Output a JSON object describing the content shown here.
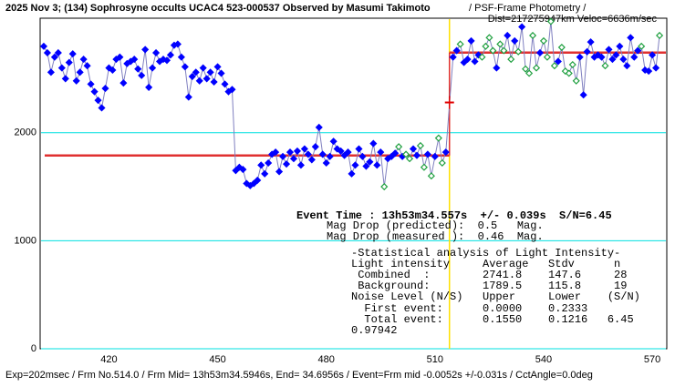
{
  "chart_data": {
    "type": "scatter",
    "title": "2025 Nov 3; (134) Sophrosyne occults UCAC4 523-000537 Observed by Masumi Takimoto",
    "subtitle": [
      "/ PSF-Frame Photometry /",
      "Dist=217275947km  Veloc=6636m/sec"
    ],
    "footer": "Exp=202msec / Frm No.514.0 / Frm Mid= 13h53m34.5946s, End= 34.6956s / Event=Frm mid -0.0052s +/-0.031s / CctAngle=0.0deg",
    "event_text": "Event Time : 13h53m34.557s  +/- 0.039s  S/N=6.45",
    "annotations": [
      "Mag Drop (predicted):  0.5   Mag.",
      "Mag Drop (measured ):  0.46  Mag.",
      "-Statistical analysis of Light Intensity-",
      "Light intensity     Average   Stdv      n",
      " Combined  :        2741.8    147.6     28",
      " Background:        1789.5    115.8     19",
      "Noise Level (N/S)   Upper     Lower    (S/N)",
      "  First event:      0.0000    0.2333",
      "  Total event:      0.1550    0.1216   6.45",
      "0.97942"
    ],
    "xlim": [
      401,
      574
    ],
    "xticks": [
      420,
      450,
      480,
      510,
      540,
      570
    ],
    "ylim": [
      0,
      3060
    ],
    "yticks": [
      0,
      1000,
      2000
    ],
    "grid": true,
    "grid_color": "#00e0e0",
    "line_color": "#8080c0",
    "series": [
      {
        "color": "#0000ff",
        "filled": true,
        "x": [
          402,
          403,
          404,
          405,
          406,
          407,
          408,
          409,
          410,
          411,
          412,
          413,
          414,
          415,
          416,
          417,
          418,
          419,
          420,
          421,
          422,
          423,
          424,
          425,
          426,
          427,
          428,
          429,
          430,
          431,
          432,
          433,
          434,
          435,
          436,
          437,
          438,
          439,
          440,
          441,
          442,
          443,
          444,
          445,
          446,
          447,
          448,
          449,
          450,
          451,
          452,
          453,
          454,
          455,
          456,
          457,
          458,
          459,
          460,
          461,
          462,
          463,
          464,
          465,
          466,
          467,
          468,
          469,
          470,
          471,
          472,
          473,
          474,
          475,
          476,
          477,
          478,
          479,
          480,
          481,
          482,
          483,
          484,
          485,
          486,
          487,
          488,
          489,
          490,
          491,
          492,
          493,
          494,
          495,
          497,
          498,
          499,
          501,
          504,
          505,
          508,
          510,
          513,
          515,
          516,
          518,
          519,
          520,
          521,
          522,
          527,
          530,
          532,
          534,
          539,
          544,
          550,
          551,
          552,
          553,
          554,
          555,
          556,
          558,
          559,
          560,
          561,
          562,
          563,
          564,
          565,
          566,
          568,
          569,
          570,
          571
        ],
        "values": [
          2800,
          2740,
          2560,
          2700,
          2740,
          2600,
          2500,
          2650,
          2730,
          2480,
          2560,
          2680,
          2620,
          2450,
          2380,
          2300,
          2230,
          2410,
          2600,
          2580,
          2680,
          2700,
          2460,
          2640,
          2660,
          2680,
          2590,
          2530,
          2770,
          2420,
          2600,
          2740,
          2660,
          2680,
          2670,
          2720,
          2810,
          2820,
          2700,
          2610,
          2330,
          2520,
          2560,
          2480,
          2600,
          2500,
          2560,
          2470,
          2610,
          2550,
          2450,
          2380,
          2400,
          1650,
          1680,
          1660,
          1530,
          1510,
          1530,
          1560,
          1700,
          1620,
          1720,
          1800,
          1820,
          1640,
          1780,
          1710,
          1820,
          1760,
          1830,
          1700,
          1850,
          1800,
          1750,
          1870,
          2050,
          1800,
          1720,
          1780,
          1920,
          1850,
          1830,
          1790,
          1820,
          1620,
          1700,
          1850,
          1780,
          1690,
          1730,
          1900,
          1700,
          1820,
          1760,
          1780,
          1810,
          1780,
          1850,
          1790,
          1800,
          1780,
          1820,
          2700,
          2760,
          2650,
          2680,
          2850,
          2660,
          2720,
          2600,
          2900,
          2850,
          2980,
          2740,
          2660,
          2700,
          2350,
          2750,
          2840,
          2700,
          2720,
          2700,
          2770,
          2680,
          2720,
          2800,
          2680,
          2620,
          2880,
          2700,
          2760,
          2580,
          2570,
          2720,
          2600
        ]
      },
      {
        "color": "#20a040",
        "filled": false,
        "x": [
          496,
          500,
          502,
          503,
          506,
          507,
          509,
          511,
          512,
          517,
          523,
          524,
          525,
          526,
          528,
          529,
          531,
          533,
          535,
          536,
          537,
          538,
          540,
          541,
          542,
          543,
          545,
          546,
          547,
          548,
          549,
          557,
          567,
          572
        ],
        "values": [
          1500,
          1870,
          1800,
          1760,
          1880,
          1680,
          1600,
          1950,
          1720,
          2820,
          2700,
          2800,
          2880,
          2760,
          2820,
          2760,
          2680,
          2750,
          2590,
          2550,
          2900,
          2600,
          2850,
          2700,
          3030,
          2620,
          2790,
          2570,
          2550,
          2630,
          2480,
          2620,
          2800,
          2900
        ]
      }
    ],
    "event": {
      "x": 514,
      "y": 2280,
      "error": 60,
      "color": "#e00000",
      "line_color": "#ffe000"
    },
    "levels": {
      "background": 1789.5,
      "combined": 2741.8,
      "color": "#e03030"
    }
  }
}
